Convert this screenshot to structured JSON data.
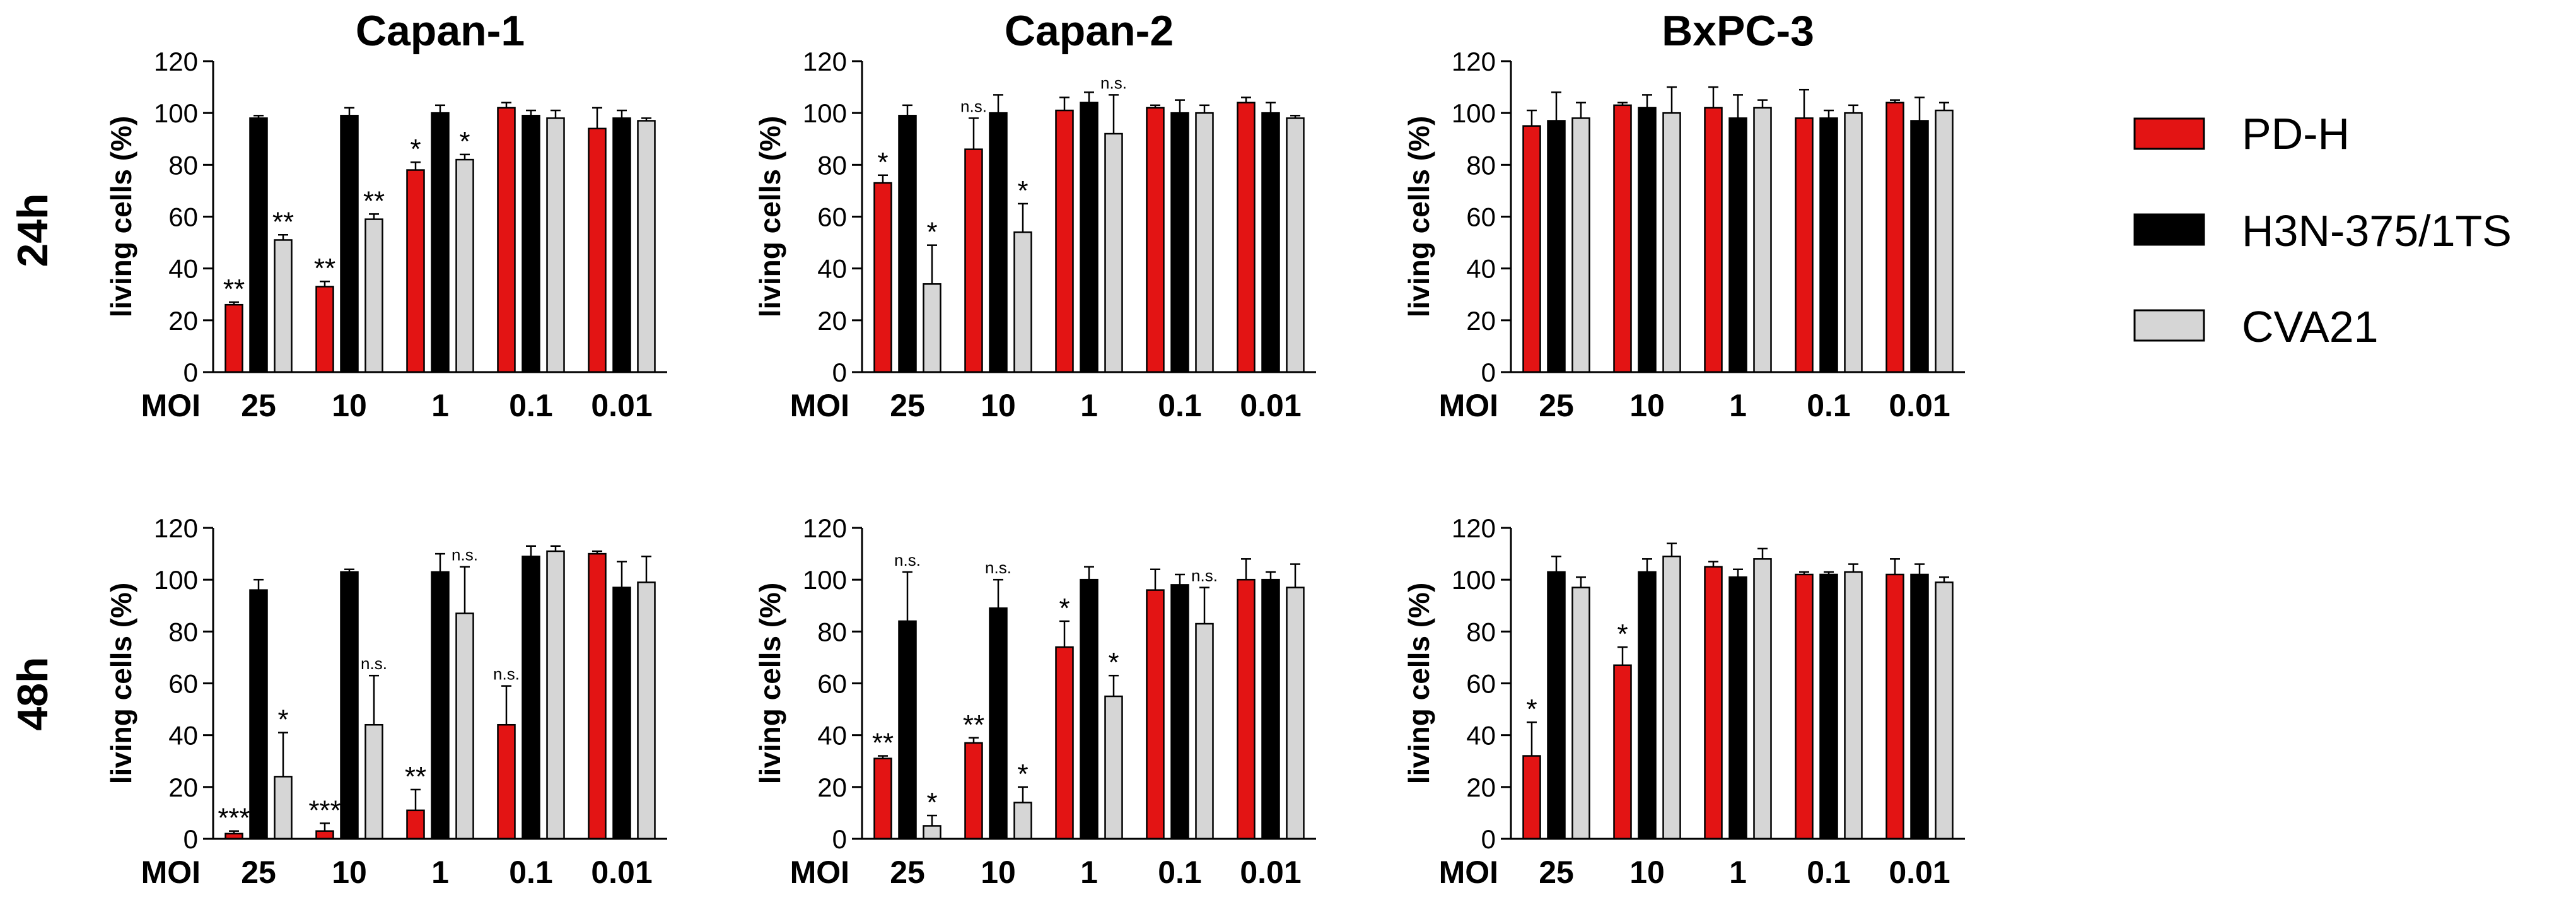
{
  "figure": {
    "row_labels": [
      "24h",
      "48h"
    ],
    "column_titles": [
      "Capan-1",
      "Capan-2",
      "BxPC-3"
    ],
    "legend": [
      {
        "label": "PD-H",
        "color": "#e31414"
      },
      {
        "label": "H3N-375/1TS",
        "color": "#000000"
      },
      {
        "label": "CVA21",
        "color": "#d6d6d6"
      }
    ]
  },
  "chart_data": [
    {
      "type": "bar",
      "panel": "24h / Capan-1",
      "title": "Capan-1",
      "ylabel": "living cells (%)",
      "xlabel": "MOI",
      "categories": [
        "25",
        "10",
        "1",
        "0.1",
        "0.01"
      ],
      "ylim": [
        0,
        120
      ],
      "yticks": [
        0,
        20,
        40,
        60,
        80,
        100,
        120
      ],
      "series": [
        {
          "name": "PD-H",
          "values": [
            26,
            33,
            78,
            102,
            94
          ],
          "errors": [
            1,
            2,
            3,
            2,
            8
          ],
          "annotations": [
            "**",
            "**",
            "*",
            "",
            ""
          ]
        },
        {
          "name": "H3N-375/1TS",
          "values": [
            98,
            99,
            100,
            99,
            98
          ],
          "errors": [
            1,
            3,
            3,
            2,
            3
          ],
          "annotations": [
            "",
            "",
            "",
            "",
            ""
          ]
        },
        {
          "name": "CVA21",
          "values": [
            51,
            59,
            82,
            98,
            97
          ],
          "errors": [
            2,
            2,
            2,
            3,
            1
          ],
          "annotations": [
            "**",
            "**",
            "*",
            "",
            ""
          ]
        }
      ]
    },
    {
      "type": "bar",
      "panel": "24h / Capan-2",
      "title": "Capan-2",
      "ylabel": "living cells (%)",
      "xlabel": "MOI",
      "categories": [
        "25",
        "10",
        "1",
        "0.1",
        "0.01"
      ],
      "ylim": [
        0,
        120
      ],
      "yticks": [
        0,
        20,
        40,
        60,
        80,
        100,
        120
      ],
      "series": [
        {
          "name": "PD-H",
          "values": [
            73,
            86,
            101,
            102,
            104
          ],
          "errors": [
            3,
            12,
            5,
            1,
            2
          ],
          "annotations": [
            "*",
            "n.s.",
            "",
            "",
            ""
          ]
        },
        {
          "name": "H3N-375/1TS",
          "values": [
            99,
            100,
            104,
            100,
            100
          ],
          "errors": [
            4,
            7,
            4,
            5,
            4
          ],
          "annotations": [
            "",
            "",
            "",
            "",
            ""
          ]
        },
        {
          "name": "CVA21",
          "values": [
            34,
            54,
            92,
            100,
            98
          ],
          "errors": [
            15,
            11,
            15,
            3,
            1
          ],
          "annotations": [
            "*",
            "*",
            "n.s.",
            "",
            ""
          ]
        }
      ]
    },
    {
      "type": "bar",
      "panel": "24h / BxPC-3",
      "title": "BxPC-3",
      "ylabel": "living cells (%)",
      "xlabel": "MOI",
      "categories": [
        "25",
        "10",
        "1",
        "0.1",
        "0.01"
      ],
      "ylim": [
        0,
        120
      ],
      "yticks": [
        0,
        20,
        40,
        60,
        80,
        100,
        120
      ],
      "series": [
        {
          "name": "PD-H",
          "values": [
            95,
            103,
            102,
            98,
            104
          ],
          "errors": [
            6,
            1,
            8,
            11,
            1
          ],
          "annotations": [
            "",
            "",
            "",
            "",
            ""
          ]
        },
        {
          "name": "H3N-375/1TS",
          "values": [
            97,
            102,
            98,
            98,
            97
          ],
          "errors": [
            11,
            5,
            9,
            3,
            9
          ],
          "annotations": [
            "",
            "",
            "",
            "",
            ""
          ]
        },
        {
          "name": "CVA21",
          "values": [
            98,
            100,
            102,
            100,
            101
          ],
          "errors": [
            6,
            10,
            3,
            3,
            3
          ],
          "annotations": [
            "",
            "",
            "",
            "",
            ""
          ]
        }
      ]
    },
    {
      "type": "bar",
      "panel": "48h / Capan-1",
      "title": "",
      "ylabel": "living cells (%)",
      "xlabel": "MOI",
      "categories": [
        "25",
        "10",
        "1",
        "0.1",
        "0.01"
      ],
      "ylim": [
        0,
        120
      ],
      "yticks": [
        0,
        20,
        40,
        60,
        80,
        100,
        120
      ],
      "series": [
        {
          "name": "PD-H",
          "values": [
            2,
            3,
            11,
            44,
            110
          ],
          "errors": [
            1,
            3,
            8,
            15,
            1
          ],
          "annotations": [
            "***",
            "***",
            "**",
            "n.s.",
            ""
          ]
        },
        {
          "name": "H3N-375/1TS",
          "values": [
            96,
            103,
            103,
            109,
            97
          ],
          "errors": [
            4,
            1,
            7,
            4,
            10
          ],
          "annotations": [
            "",
            "",
            "",
            "",
            ""
          ]
        },
        {
          "name": "CVA21",
          "values": [
            24,
            44,
            87,
            111,
            99
          ],
          "errors": [
            17,
            19,
            18,
            2,
            10
          ],
          "annotations": [
            "*",
            "n.s.",
            "n.s.",
            "",
            ""
          ]
        }
      ]
    },
    {
      "type": "bar",
      "panel": "48h / Capan-2",
      "title": "",
      "ylabel": "living cells (%)",
      "xlabel": "MOI",
      "categories": [
        "25",
        "10",
        "1",
        "0.1",
        "0.01"
      ],
      "ylim": [
        0,
        120
      ],
      "yticks": [
        0,
        20,
        40,
        60,
        80,
        100,
        120
      ],
      "series": [
        {
          "name": "PD-H",
          "values": [
            31,
            37,
            74,
            96,
            100
          ],
          "errors": [
            1,
            2,
            10,
            8,
            8
          ],
          "annotations": [
            "**",
            "**",
            "*",
            "",
            ""
          ]
        },
        {
          "name": "H3N-375/1TS",
          "values": [
            84,
            89,
            100,
            98,
            100
          ],
          "errors": [
            19,
            11,
            5,
            4,
            3
          ],
          "annotations": [
            "n.s.",
            "n.s.",
            "",
            "",
            ""
          ]
        },
        {
          "name": "CVA21",
          "values": [
            5,
            14,
            55,
            83,
            97
          ],
          "errors": [
            4,
            6,
            8,
            14,
            9
          ],
          "annotations": [
            "*",
            "*",
            "*",
            "n.s.",
            ""
          ]
        }
      ]
    },
    {
      "type": "bar",
      "panel": "48h / BxPC-3",
      "title": "",
      "ylabel": "living cells (%)",
      "xlabel": "MOI",
      "categories": [
        "25",
        "10",
        "1",
        "0.1",
        "0.01"
      ],
      "ylim": [
        0,
        120
      ],
      "yticks": [
        0,
        20,
        40,
        60,
        80,
        100,
        120
      ],
      "series": [
        {
          "name": "PD-H",
          "values": [
            32,
            67,
            105,
            102,
            102
          ],
          "errors": [
            13,
            7,
            2,
            1,
            6
          ],
          "annotations": [
            "*",
            "*",
            "",
            "",
            ""
          ]
        },
        {
          "name": "H3N-375/1TS",
          "values": [
            103,
            103,
            101,
            102,
            102
          ],
          "errors": [
            6,
            5,
            3,
            1,
            4
          ],
          "annotations": [
            "",
            "",
            "",
            "",
            ""
          ]
        },
        {
          "name": "CVA21",
          "values": [
            97,
            109,
            108,
            103,
            99
          ],
          "errors": [
            4,
            5,
            4,
            3,
            2
          ],
          "annotations": [
            "",
            "",
            "",
            "",
            ""
          ]
        }
      ]
    }
  ]
}
